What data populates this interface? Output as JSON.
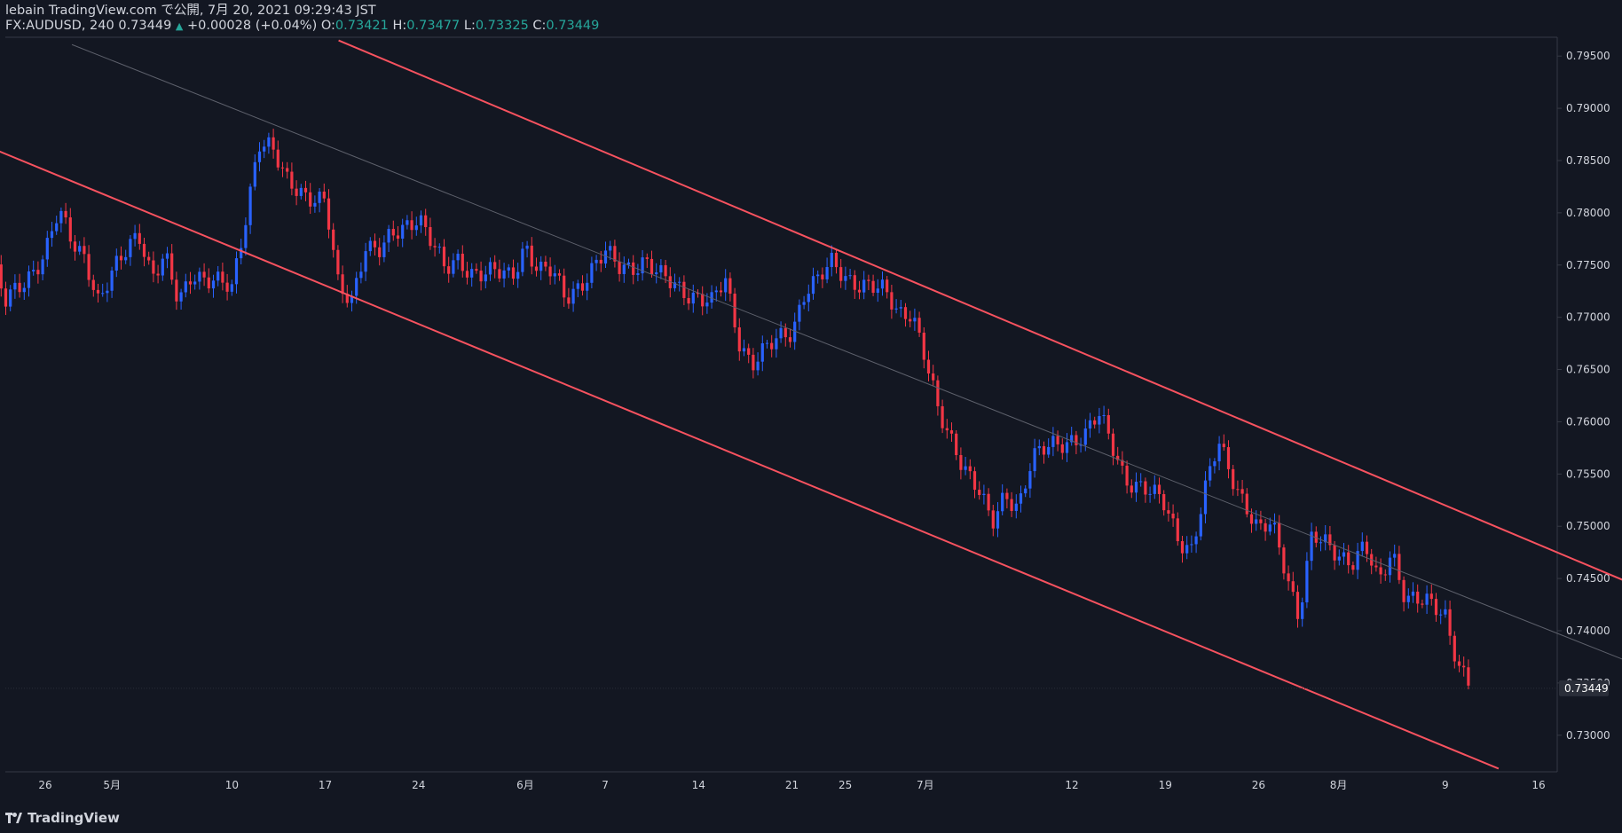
{
  "header": {
    "line1": "lebain TradingView.com で公開, 7月 20, 2021 09:29:43 JST",
    "symbol": "FX:AUDUSD, 240",
    "last": "0.73449",
    "triangle": "▲",
    "change": "+0.00028 (+0.04%)",
    "o_label": "O:",
    "o_val": "0.73421",
    "h_label": "H:",
    "h_val": "0.73477",
    "l_label": "L:",
    "l_val": "0.73325",
    "c_label": "C:",
    "c_val": "0.73449"
  },
  "footer": {
    "brand": "TradingView"
  },
  "colors": {
    "background": "#131722",
    "up": "#2962ff",
    "down": "#f23645",
    "line": "#f7525f",
    "text": "#d1d4dc",
    "axis": "#363a45",
    "teal": "#26a69a"
  },
  "chart_data": {
    "type": "candlestick",
    "symbol": "FX:AUDUSD",
    "interval": "240",
    "title": "",
    "ylim": [
      0.7265,
      0.7968
    ],
    "y_ticks": [
      "0.73000",
      "0.73500",
      "0.74000",
      "0.74500",
      "0.75000",
      "0.75500",
      "0.76000",
      "0.76500",
      "0.77000",
      "0.77500",
      "0.78000",
      "0.78500",
      "0.79000",
      "0.79500"
    ],
    "x_labels": [
      "26",
      "5月",
      "10",
      "17",
      "24",
      "6月",
      "7",
      "14",
      "21",
      "25",
      "7月",
      "12",
      "19",
      "26",
      "8月",
      "9",
      "16"
    ],
    "last_price_label": "0.73449",
    "price_path": [
      [
        "2021-04-22",
        0.7755
      ],
      [
        "2021-04-23",
        0.7712
      ],
      [
        "2021-04-26",
        0.7762
      ],
      [
        "2021-04-27",
        0.7799
      ],
      [
        "2021-04-28",
        0.7772
      ],
      [
        "2021-04-29",
        0.776
      ],
      [
        "2021-04-30",
        0.7715
      ],
      [
        "2021-05-03",
        0.7785
      ],
      [
        "2021-05-04",
        0.774
      ],
      [
        "2021-05-05",
        0.7755
      ],
      [
        "2021-05-06",
        0.7712
      ],
      [
        "2021-05-07",
        0.7745
      ],
      [
        "2021-05-10",
        0.7725
      ],
      [
        "2021-05-11",
        0.7795
      ],
      [
        "2021-05-12",
        0.787
      ],
      [
        "2021-05-13",
        0.786
      ],
      [
        "2021-05-14",
        0.783
      ],
      [
        "2021-05-17",
        0.781
      ],
      [
        "2021-05-18",
        0.7725
      ],
      [
        "2021-05-19",
        0.7718
      ],
      [
        "2021-05-20",
        0.7772
      ],
      [
        "2021-05-21",
        0.7762
      ],
      [
        "2021-05-24",
        0.78
      ],
      [
        "2021-05-25",
        0.7772
      ],
      [
        "2021-05-26",
        0.7742
      ],
      [
        "2021-05-27",
        0.7755
      ],
      [
        "2021-05-28",
        0.7745
      ],
      [
        "2021-05-31",
        0.7738
      ],
      [
        "2021-06-01",
        0.7772
      ],
      [
        "2021-06-02",
        0.7745
      ],
      [
        "2021-06-03",
        0.7742
      ],
      [
        "2021-06-04",
        0.7718
      ],
      [
        "2021-06-07",
        0.776
      ],
      [
        "2021-06-08",
        0.7748
      ],
      [
        "2021-06-09",
        0.775
      ],
      [
        "2021-06-10",
        0.7755
      ],
      [
        "2021-06-11",
        0.7738
      ],
      [
        "2021-06-14",
        0.772
      ],
      [
        "2021-06-15",
        0.7712
      ],
      [
        "2021-06-16",
        0.7735
      ],
      [
        "2021-06-17",
        0.768
      ],
      [
        "2021-06-18",
        0.7657
      ],
      [
        "2021-06-21",
        0.7688
      ],
      [
        "2021-06-22",
        0.7728
      ],
      [
        "2021-06-23",
        0.7735
      ],
      [
        "2021-06-24",
        0.775
      ],
      [
        "2021-06-25",
        0.774
      ],
      [
        "2021-06-28",
        0.7722
      ],
      [
        "2021-06-29",
        0.7705
      ],
      [
        "2021-06-30",
        0.7708
      ],
      [
        "2021-07-01",
        0.766
      ],
      [
        "2021-07-02",
        0.7605
      ],
      [
        "2021-07-05",
        0.7535
      ],
      [
        "2021-07-06",
        0.7498
      ],
      [
        "2021-07-07",
        0.753
      ],
      [
        "2021-07-08",
        0.7522
      ],
      [
        "2021-07-09",
        0.7565
      ],
      [
        "2021-07-12",
        0.7585
      ],
      [
        "2021-07-13",
        0.7588
      ],
      [
        "2021-07-14",
        0.7605
      ],
      [
        "2021-07-15",
        0.7578
      ],
      [
        "2021-07-16",
        0.7548
      ],
      [
        "2021-07-19",
        0.752
      ],
      [
        "2021-07-20",
        0.749
      ],
      [
        "2021-07-21",
        0.7478
      ],
      [
        "2021-07-22",
        0.7532
      ],
      [
        "2021-07-23",
        0.758
      ],
      [
        "2021-07-26",
        0.7492
      ],
      [
        "2021-07-27",
        0.7502
      ],
      [
        "2021-07-28",
        0.7462
      ],
      [
        "2021-07-29",
        0.7415
      ],
      [
        "2021-07-30",
        0.7488
      ],
      [
        "2021-08-02",
        0.7468
      ],
      [
        "2021-08-03",
        0.748
      ],
      [
        "2021-08-04",
        0.7442
      ],
      [
        "2021-08-05",
        0.7478
      ],
      [
        "2021-08-06",
        0.7435
      ],
      [
        "2021-08-09",
        0.7415
      ],
      [
        "2021-08-10",
        0.737
      ],
      [
        "2021-08-11",
        0.7345
      ]
    ],
    "trend_lines": [
      {
        "name": "upper-channel",
        "from": [
          "2021-05-18",
          0.7965
        ],
        "to": [
          "2021-09-25",
          0.7268
        ],
        "color": "#f7525f"
      },
      {
        "name": "lower-channel",
        "from": [
          "2021-04-21",
          0.7867
        ],
        "to": [
          "2021-08-13",
          0.7268
        ],
        "color": "#f7525f"
      },
      {
        "name": "mid-channel",
        "from": [
          "2021-04-28",
          0.7961
        ],
        "to": [
          "2021-09-12",
          0.7268
        ],
        "color": "#5d606b"
      }
    ]
  }
}
